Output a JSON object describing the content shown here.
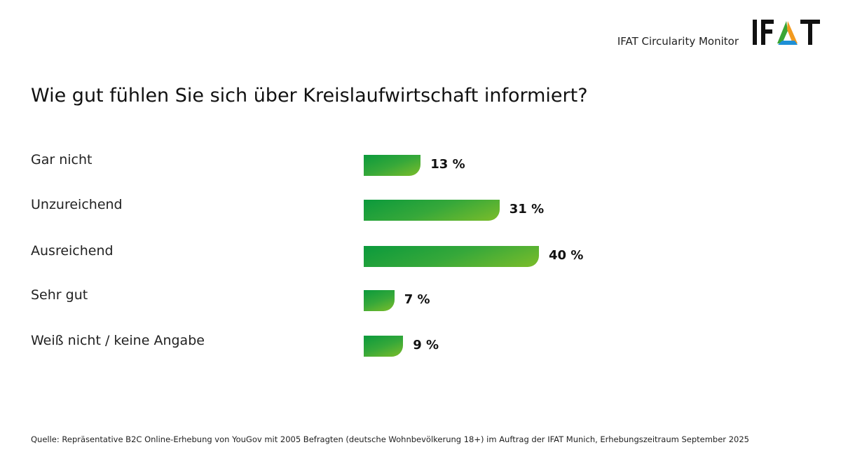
{
  "header": {
    "brand": "IFAT Circularity Monitor",
    "logo_text": "IFAT"
  },
  "chart_data": {
    "type": "bar",
    "orientation": "horizontal",
    "title": "Wie gut fühlen Sie sich über Kreislaufwirtschaft informiert?",
    "categories": [
      "Gar nicht",
      "Unzureichend",
      "Ausreichend",
      "Sehr gut",
      "Weiß nicht / keine Angabe"
    ],
    "values": [
      13,
      31,
      40,
      7,
      9
    ],
    "value_labels": [
      "13 %",
      "31 %",
      "40 %",
      "7 %",
      "9 %"
    ],
    "unit": "%",
    "xlim": [
      0,
      100
    ],
    "grid": false,
    "colors": {
      "start": "#0b9a3c",
      "end": "#7cbd2a"
    }
  },
  "footer": {
    "source": "Quelle: Repräsentative B2C Online-Erhebung von YouGov mit 2005 Befragten (deutsche Wohnbevölkerung 18+) im Auftrag der IFAT Munich, Erhebungszeitraum September 2025"
  }
}
